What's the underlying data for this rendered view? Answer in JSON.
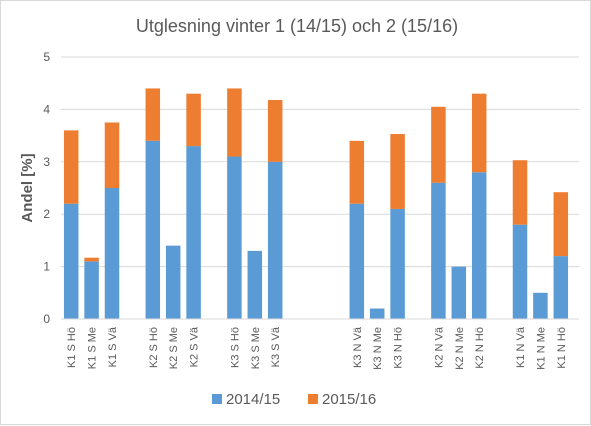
{
  "chart_data": {
    "type": "bar",
    "stacked": true,
    "title": "Utglesning vinter 1 (14/15) och 2 (15/16)",
    "xlabel": "",
    "ylabel": "Andel [%]",
    "ylim": [
      0,
      5
    ],
    "yticks": [
      0,
      1,
      2,
      3,
      4,
      5
    ],
    "grid": true,
    "legend_position": "bottom",
    "slots": [
      "K1 S Hö",
      "K1 S Me",
      "K1 S Vä",
      "",
      "K2 S Hö",
      "K2 S Me",
      "K2 S Vä",
      "",
      "K3 S Hö",
      "K3 S Me",
      "K3 S Vä",
      "",
      "",
      "",
      "K3 N Vä",
      "K3 N Me",
      "K3 N Hö",
      "",
      "K2 N Vä",
      "K2 N Me",
      "K2 N Hö",
      "",
      "K1 N Vä",
      "K1 N Me",
      "K1 N Hö"
    ],
    "categories": [
      "K1 S Hö",
      "K1 S Me",
      "K1 S Vä",
      "K2 S Hö",
      "K2 S Me",
      "K2 S Vä",
      "K3 S Hö",
      "K3 S Me",
      "K3 S Vä",
      "K3 N Vä",
      "K3 N Me",
      "K3 N Hö",
      "K2 N Vä",
      "K2 N Me",
      "K2 N Hö",
      "K1 N Vä",
      "K1 N Me",
      "K1 N Hö"
    ],
    "series": [
      {
        "name": "2014/15",
        "color": "#5b9bd5",
        "values": [
          2.2,
          1.1,
          2.5,
          3.4,
          1.4,
          3.3,
          3.1,
          1.3,
          3.0,
          2.2,
          0.2,
          2.1,
          2.6,
          1.0,
          2.8,
          1.8,
          0.5,
          1.2
        ]
      },
      {
        "name": "2015/16",
        "color": "#ed7d31",
        "values": [
          1.4,
          0.07,
          1.25,
          1.0,
          0.0,
          1.0,
          1.3,
          0.0,
          1.18,
          1.2,
          0.0,
          1.43,
          1.45,
          0.0,
          1.5,
          1.23,
          0.0,
          1.22
        ]
      }
    ]
  }
}
